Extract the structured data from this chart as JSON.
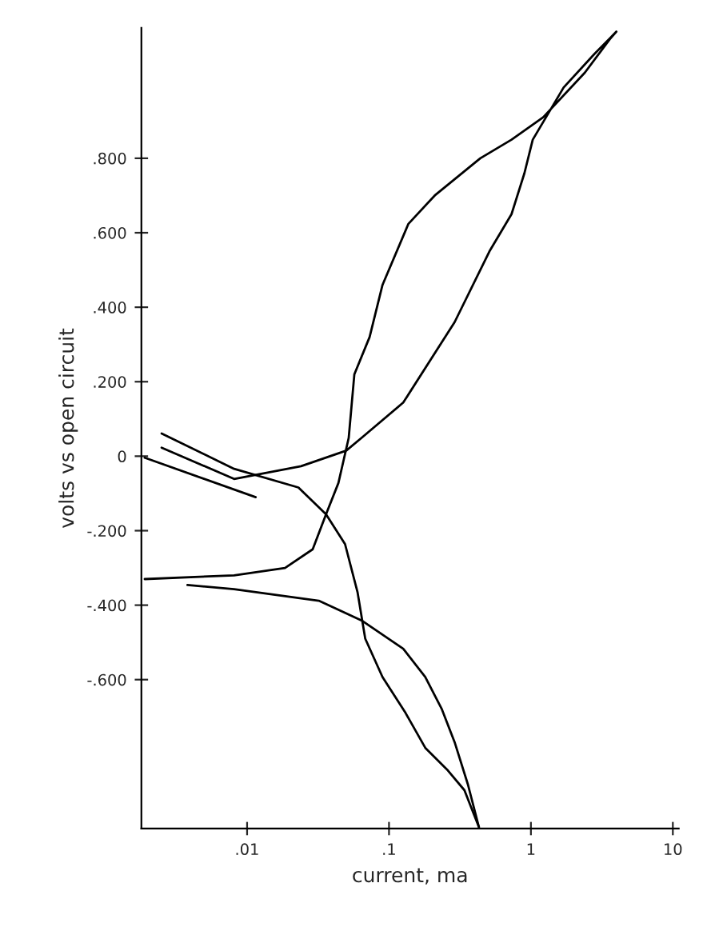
{
  "chart_data": {
    "type": "line",
    "xlabel": "current, ma",
    "ylabel": "volts vs open circuit",
    "log": "x",
    "grid": false,
    "marker": "none",
    "line_style": "solid",
    "xlim": [
      0.0018,
      11
    ],
    "xticks": [
      {
        "value": 0.01,
        "label": ".01"
      },
      {
        "value": 0.1,
        "label": ".1"
      },
      1,
      10
    ],
    "ylim": [
      -1.0,
      1.15
    ],
    "yticks": [
      {
        "value": 0.8,
        "label": ".800"
      },
      {
        "value": 0.6,
        "label": ".600"
      },
      {
        "value": 0.4,
        "label": ".400"
      },
      {
        "value": 0.2,
        "label": ".200"
      },
      0,
      {
        "value": -0.2,
        "label": "-.200"
      },
      {
        "value": -0.4,
        "label": "-.400"
      },
      {
        "value": -0.6,
        "label": "-.600"
      }
    ],
    "series": [
      {
        "color": "#000000",
        "x": [
          0.0019,
          0.0081,
          0.0185,
          0.029,
          0.036,
          0.044,
          0.052,
          0.057,
          0.073,
          0.09,
          0.137,
          0.21,
          0.44,
          0.73,
          1.22,
          2.4,
          3.6,
          4.0,
          2.8,
          1.7,
          1.03,
          0.9,
          0.73,
          0.51,
          0.29,
          0.126,
          0.064,
          0.05,
          0.024,
          0.0081,
          0.0025
        ],
        "values": [
          -0.33,
          -0.32,
          -0.3,
          -0.25,
          -0.156,
          -0.072,
          0.049,
          0.22,
          0.32,
          0.46,
          0.624,
          0.7,
          0.8,
          0.85,
          0.91,
          1.03,
          1.12,
          1.14,
          1.08,
          0.99,
          0.85,
          0.76,
          0.65,
          0.55,
          0.36,
          0.144,
          0.049,
          0.015,
          -0.027,
          -0.061,
          0.023
        ]
      },
      {
        "color": "#000000",
        "x": [
          0.0025,
          0.0081,
          0.023,
          0.036,
          0.049,
          0.06,
          0.068,
          0.09,
          0.131,
          0.18,
          0.26,
          0.34,
          0.43
        ],
        "values": [
          0.061,
          -0.034,
          -0.084,
          -0.156,
          -0.236,
          -0.365,
          -0.49,
          -0.593,
          -0.69,
          -0.783,
          -0.844,
          -0.897,
          -0.996
        ]
      },
      {
        "color": "#000000",
        "x": [
          0.0019,
          0.0115
        ],
        "values": [
          -0.004,
          -0.11
        ]
      },
      {
        "color": "#000000",
        "x": [
          0.0038,
          0.0081,
          0.032,
          0.064,
          0.126,
          0.18,
          0.236,
          0.29,
          0.36,
          0.43
        ],
        "values": [
          -0.346,
          -0.357,
          -0.388,
          -0.441,
          -0.517,
          -0.593,
          -0.68,
          -0.768,
          -0.882,
          -0.996
        ]
      }
    ]
  }
}
